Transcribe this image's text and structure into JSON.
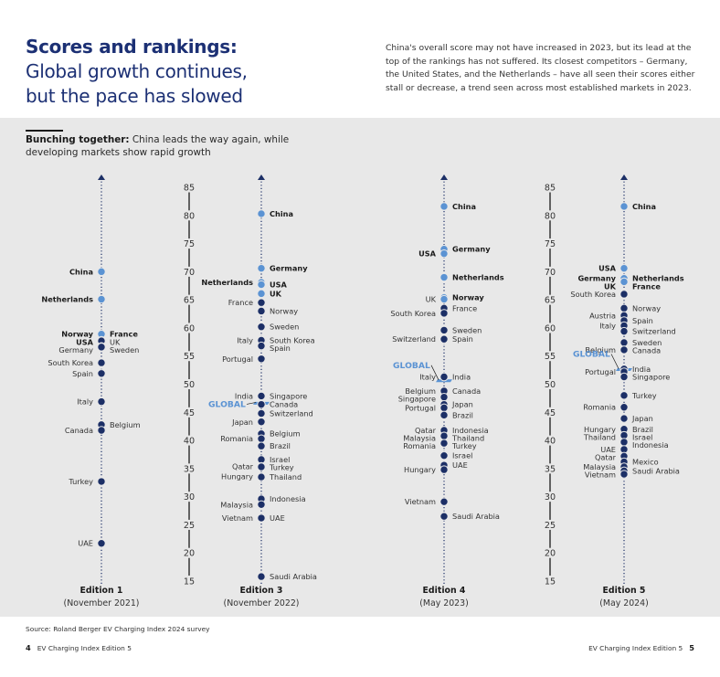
{
  "header": {
    "title_bold": "Scores and rankings:",
    "title_line2": "Global growth continues,",
    "title_line3": "but the pace has slowed",
    "intro_text": "China's overall score may not have increased in 2023, but its lead at the top of the rankings has not suffered. Its closest competitors – Germany, the United States, and the Netherlands – have all seen their scores either stall or decrease, a trend seen across most established markets in 2023."
  },
  "chart_header": {
    "subtitle_bold": "Bunching together:",
    "subtitle_rest": " China leads the way again, while developing markets show rapid growth"
  },
  "colors": {
    "leader_dot": "#5b93d3",
    "dot": "#1c2f66",
    "global": "#5b93d3",
    "axis": "#1a1a1a",
    "panel_bg": "#e8e8e8"
  },
  "chart_data": {
    "type": "scatter",
    "title": "Bunching together: China leads the way again, while developing markets show rapid growth",
    "ylim": [
      15,
      85
    ],
    "yticks": [
      "85",
      "80",
      "75",
      "70",
      "65",
      "60",
      "55",
      "50",
      "45",
      "40",
      "35",
      "30",
      "25",
      "20",
      "15"
    ],
    "editions": [
      {
        "name": "Edition 1",
        "date": "(November 2021)",
        "points": [
          {
            "label": "China",
            "value": 70.0,
            "side": "left",
            "bold": true,
            "leader": true
          },
          {
            "label": "Netherlands",
            "value": 65.1,
            "side": "left",
            "bold": true,
            "leader": true
          },
          {
            "label": "Norway",
            "value": 58.9,
            "side": "left",
            "bold": true,
            "leader": true
          },
          {
            "label": "France",
            "value": 58.9,
            "side": "right",
            "bold": true,
            "leader": true
          },
          {
            "label": "USA",
            "value": 57.8,
            "side": "left",
            "bold": true,
            "leader": true
          },
          {
            "label": "UK",
            "value": 57.7,
            "side": "right",
            "bold": false
          },
          {
            "label": "Germany",
            "value": 56.7,
            "side": "left",
            "bold": false
          },
          {
            "label": "Sweden",
            "value": 56.6,
            "side": "right",
            "bold": false
          },
          {
            "label": "South Korea",
            "value": 53.8,
            "side": "left",
            "bold": false
          },
          {
            "label": "Spain",
            "value": 51.9,
            "side": "left",
            "bold": false
          },
          {
            "label": "Italy",
            "value": 46.9,
            "side": "left",
            "bold": false
          },
          {
            "label": "Belgium",
            "value": 42.8,
            "side": "right",
            "bold": false
          },
          {
            "label": "Canada",
            "value": 41.8,
            "side": "left",
            "bold": false
          },
          {
            "label": "Turkey",
            "value": 32.7,
            "side": "left",
            "bold": false
          },
          {
            "label": "UAE",
            "value": 21.7,
            "side": "left",
            "bold": false
          }
        ]
      },
      {
        "name": "Edition 3",
        "date": "(November 2022)",
        "global": 46.6,
        "points": [
          {
            "label": "China",
            "value": 80.3,
            "side": "right",
            "bold": true,
            "leader": true
          },
          {
            "label": "Germany",
            "value": 70.6,
            "side": "right",
            "bold": true,
            "leader": true
          },
          {
            "label": "Netherlands",
            "value": 68.1,
            "side": "left",
            "bold": true,
            "leader": true
          },
          {
            "label": "USA",
            "value": 67.7,
            "side": "right",
            "bold": true,
            "leader": true
          },
          {
            "label": "UK",
            "value": 66.1,
            "side": "right",
            "bold": true,
            "leader": true
          },
          {
            "label": "France",
            "value": 64.5,
            "side": "left",
            "bold": false
          },
          {
            "label": "Norway",
            "value": 63.0,
            "side": "right",
            "bold": false
          },
          {
            "label": "Sweden",
            "value": 60.2,
            "side": "right",
            "bold": false
          },
          {
            "label": "Italy",
            "value": 57.8,
            "side": "left",
            "bold": false
          },
          {
            "label": "South Korea",
            "value": 57.8,
            "side": "right",
            "bold": false
          },
          {
            "label": "Spain",
            "value": 56.8,
            "side": "right",
            "bold": false
          },
          {
            "label": "Portugal",
            "value": 54.5,
            "side": "left",
            "bold": false
          },
          {
            "label": "India",
            "value": 47.9,
            "side": "left",
            "bold": false
          },
          {
            "label": "Singapore",
            "value": 47.9,
            "side": "right",
            "bold": false
          },
          {
            "label": "Canada",
            "value": 46.4,
            "side": "right",
            "bold": false
          },
          {
            "label": "Switzerland",
            "value": 44.8,
            "side": "right",
            "bold": false
          },
          {
            "label": "Japan",
            "value": 43.3,
            "side": "left",
            "bold": false
          },
          {
            "label": "Belgium",
            "value": 41.2,
            "side": "right",
            "bold": false
          },
          {
            "label": "Romania",
            "value": 40.3,
            "side": "left",
            "bold": false
          },
          {
            "label": "Brazil",
            "value": 39.0,
            "side": "right",
            "bold": false
          },
          {
            "label": "Israel",
            "value": 36.6,
            "side": "right",
            "bold": false
          },
          {
            "label": "Qatar",
            "value": 35.4,
            "side": "left",
            "bold": false
          },
          {
            "label": "Turkey",
            "value": 35.3,
            "side": "right",
            "bold": false
          },
          {
            "label": "Hungary",
            "value": 33.6,
            "side": "left",
            "bold": false
          },
          {
            "label": "Thailand",
            "value": 33.5,
            "side": "right",
            "bold": false
          },
          {
            "label": "Indonesia",
            "value": 29.6,
            "side": "right",
            "bold": false
          },
          {
            "label": "Malaysia",
            "value": 28.6,
            "side": "left",
            "bold": false
          },
          {
            "label": "Vietnam",
            "value": 26.2,
            "side": "left",
            "bold": false
          },
          {
            "label": "UAE",
            "value": 26.2,
            "side": "right",
            "bold": false
          },
          {
            "label": "Saudi Arabia",
            "value": 15.8,
            "side": "right",
            "bold": false
          }
        ]
      },
      {
        "name": "Edition 4",
        "date": "(May 2023)",
        "global": 50.6,
        "points": [
          {
            "label": "China",
            "value": 81.6,
            "side": "right",
            "bold": true,
            "leader": true
          },
          {
            "label": "Germany",
            "value": 74.0,
            "side": "right",
            "bold": true,
            "leader": true
          },
          {
            "label": "USA",
            "value": 73.2,
            "side": "left",
            "bold": true,
            "leader": true
          },
          {
            "label": "Netherlands",
            "value": 69.0,
            "side": "right",
            "bold": true,
            "leader": true
          },
          {
            "label": "Norway",
            "value": 65.4,
            "side": "right",
            "bold": true,
            "leader": true
          },
          {
            "label": "UK",
            "value": 65.1,
            "side": "left",
            "bold": false,
            "leader": true
          },
          {
            "label": "France",
            "value": 63.5,
            "side": "right",
            "bold": false
          },
          {
            "label": "South Korea",
            "value": 62.6,
            "side": "left",
            "bold": false
          },
          {
            "label": "Sweden",
            "value": 59.6,
            "side": "right",
            "bold": false
          },
          {
            "label": "Switzerland",
            "value": 58.0,
            "side": "left",
            "bold": false
          },
          {
            "label": "Spain",
            "value": 58.0,
            "side": "right",
            "bold": false
          },
          {
            "label": "Italy",
            "value": 51.3,
            "side": "left",
            "bold": false
          },
          {
            "label": "India",
            "value": 51.3,
            "side": "right",
            "bold": false
          },
          {
            "label": "Belgium",
            "value": 48.8,
            "side": "left",
            "bold": false
          },
          {
            "label": "Canada",
            "value": 48.8,
            "side": "right",
            "bold": false
          },
          {
            "label": "Singapore",
            "value": 47.7,
            "side": "left",
            "bold": false
          },
          {
            "label": "Japan",
            "value": 46.4,
            "side": "right",
            "bold": false
          },
          {
            "label": "Portugal",
            "value": 45.8,
            "side": "left",
            "bold": false
          },
          {
            "label": "Brazil",
            "value": 44.5,
            "side": "right",
            "bold": false
          },
          {
            "label": "Qatar",
            "value": 41.8,
            "side": "left",
            "bold": false
          },
          {
            "label": "Indonesia",
            "value": 41.8,
            "side": "right",
            "bold": false
          },
          {
            "label": "Malaysia",
            "value": 40.8,
            "side": "left",
            "bold": false
          },
          {
            "label": "Thailand",
            "value": 40.8,
            "side": "right",
            "bold": false
          },
          {
            "label": "Romania",
            "value": 39.5,
            "side": "left",
            "bold": false
          },
          {
            "label": "Turkey",
            "value": 39.5,
            "side": "right",
            "bold": false
          },
          {
            "label": "Israel",
            "value": 37.3,
            "side": "right",
            "bold": false
          },
          {
            "label": "UAE",
            "value": 35.6,
            "side": "right",
            "bold": false
          },
          {
            "label": "Hungary",
            "value": 34.8,
            "side": "left",
            "bold": false
          },
          {
            "label": "Vietnam",
            "value": 29.1,
            "side": "left",
            "bold": false
          },
          {
            "label": "Saudi Arabia",
            "value": 26.5,
            "side": "right",
            "bold": false
          }
        ]
      },
      {
        "name": "Edition 5",
        "date": "(May 2024)",
        "global": 52.6,
        "points": [
          {
            "label": "China",
            "value": 81.6,
            "side": "right",
            "bold": true,
            "leader": true
          },
          {
            "label": "USA",
            "value": 70.6,
            "side": "left",
            "bold": true,
            "leader": true
          },
          {
            "label": "Germany",
            "value": 68.8,
            "side": "left",
            "bold": true,
            "leader": true
          },
          {
            "label": "Netherlands",
            "value": 68.8,
            "side": "right",
            "bold": true,
            "leader": true
          },
          {
            "label": "UK",
            "value": 68.2,
            "side": "left",
            "bold": true,
            "leader": true
          },
          {
            "label": "France",
            "value": 68.2,
            "side": "right",
            "bold": true,
            "leader": true
          },
          {
            "label": "South Korea",
            "value": 66.0,
            "side": "left",
            "bold": false
          },
          {
            "label": "Norway",
            "value": 63.5,
            "side": "right",
            "bold": false
          },
          {
            "label": "Austria",
            "value": 62.2,
            "side": "left",
            "bold": false
          },
          {
            "label": "Spain",
            "value": 61.3,
            "side": "right",
            "bold": false
          },
          {
            "label": "Italy",
            "value": 60.4,
            "side": "left",
            "bold": false
          },
          {
            "label": "Switzerland",
            "value": 59.4,
            "side": "right",
            "bold": false
          },
          {
            "label": "Sweden",
            "value": 57.4,
            "side": "right",
            "bold": false
          },
          {
            "label": "Belgium",
            "value": 56.1,
            "side": "left",
            "bold": false
          },
          {
            "label": "Canada",
            "value": 56.1,
            "side": "right",
            "bold": false
          },
          {
            "label": "India",
            "value": 52.7,
            "side": "right",
            "bold": false
          },
          {
            "label": "Portugal",
            "value": 52.2,
            "side": "left",
            "bold": false
          },
          {
            "label": "Singapore",
            "value": 51.3,
            "side": "right",
            "bold": false
          },
          {
            "label": "Turkey",
            "value": 48.0,
            "side": "right",
            "bold": false
          },
          {
            "label": "Romania",
            "value": 45.9,
            "side": "left",
            "bold": false
          },
          {
            "label": "Japan",
            "value": 43.9,
            "side": "right",
            "bold": false
          },
          {
            "label": "Hungary",
            "value": 42.0,
            "side": "left",
            "bold": false
          },
          {
            "label": "Brazil",
            "value": 42.0,
            "side": "right",
            "bold": false
          },
          {
            "label": "Thailand",
            "value": 40.9,
            "side": "left",
            "bold": false
          },
          {
            "label": "Israel",
            "value": 40.9,
            "side": "right",
            "bold": false
          },
          {
            "label": "Indonesia",
            "value": 39.7,
            "side": "right",
            "bold": false
          },
          {
            "label": "UAE",
            "value": 38.4,
            "side": "left",
            "bold": false
          },
          {
            "label": "Qatar",
            "value": 37.2,
            "side": "left",
            "bold": false
          },
          {
            "label": "Mexico",
            "value": 36.2,
            "side": "right",
            "bold": false
          },
          {
            "label": "Malaysia",
            "value": 35.3,
            "side": "left",
            "bold": false
          },
          {
            "label": "Saudi Arabia",
            "value": 34.6,
            "side": "right",
            "bold": false
          },
          {
            "label": "Vietnam",
            "value": 34.0,
            "side": "left",
            "bold": false
          }
        ]
      }
    ],
    "global_label": "GLOBAL"
  },
  "footer": {
    "source": "Source: Roland Berger EV Charging Index 2024 survey",
    "left_page": "4",
    "left_title": "EV Charging Index Edition 5",
    "right_title": "EV Charging Index Edition 5",
    "right_page": "5"
  }
}
